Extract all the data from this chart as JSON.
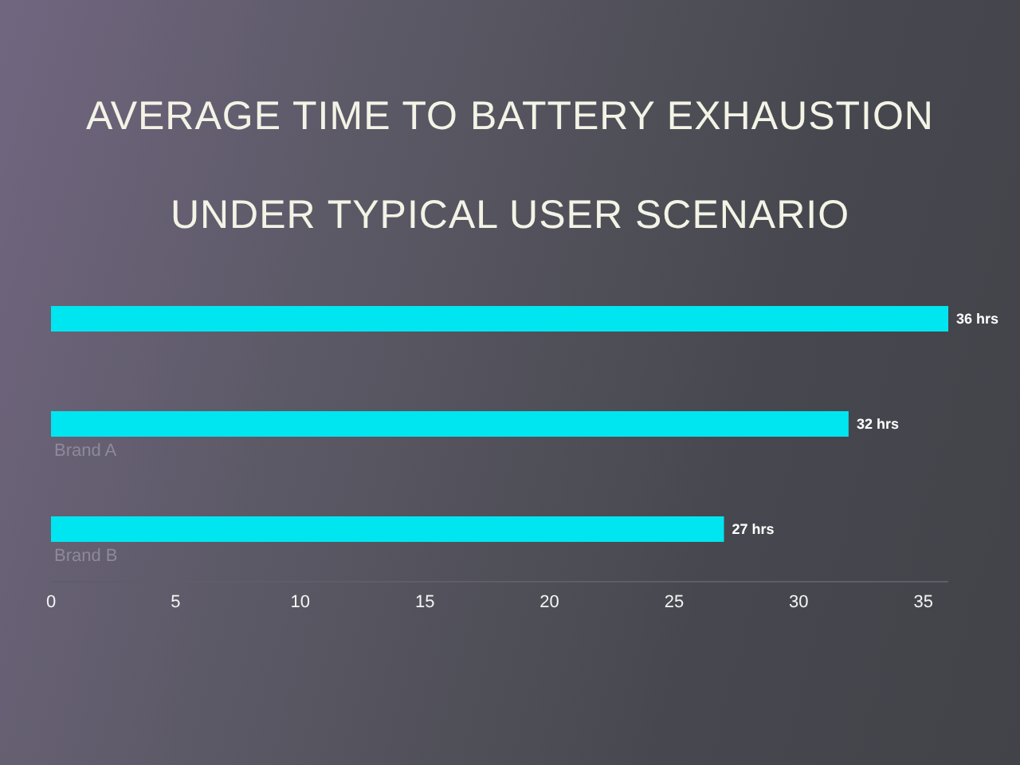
{
  "chart_data": {
    "type": "bar",
    "orientation": "horizontal",
    "title": "AVERAGE TIME TO BATTERY EXHAUSTION UNDER TYPICAL USER SCENARIO",
    "categories": [
      null,
      "Brand A",
      "Brand B"
    ],
    "values": [
      36,
      32,
      27
    ],
    "value_labels": [
      "36 hrs",
      "32 hrs",
      "27 hrs"
    ],
    "color": "#00e6f0",
    "xlim": [
      0,
      36
    ],
    "xticks": [
      0,
      5,
      10,
      15,
      20,
      25,
      30,
      35
    ]
  }
}
